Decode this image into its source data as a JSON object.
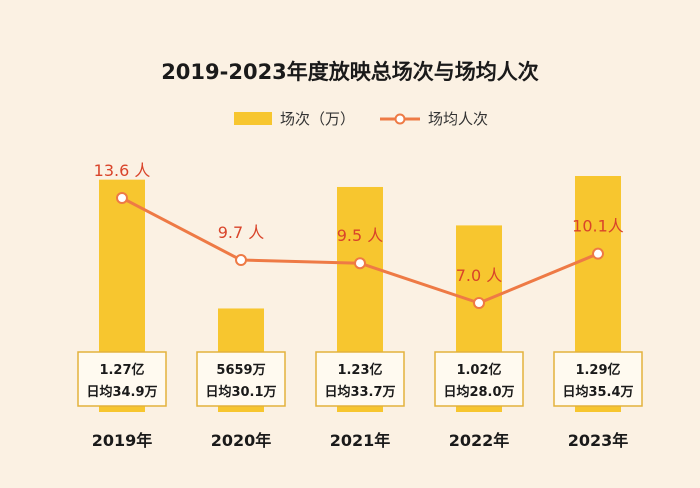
{
  "colors": {
    "bar": "#f7c62f",
    "line": "#ee7a45",
    "line_label": "#d9442a",
    "box_border": "#e3b23c",
    "box_fill": "#fffaf0",
    "background": "#fbf1e3"
  },
  "chart_data": {
    "type": "bar",
    "title": "2019-2023年度放映总场次与场均人次",
    "categories": [
      "2019年",
      "2020年",
      "2021年",
      "2022年",
      "2023年"
    ],
    "legend_position": "top",
    "grid": false,
    "series": [
      {
        "name": "场次（万）",
        "type": "bar",
        "values": [
          12700,
          5659,
          12300,
          10200,
          12900
        ],
        "labels": [
          "1.27亿",
          "5659万",
          "1.23亿",
          "1.02亿",
          "1.29亿"
        ],
        "daily_labels": [
          "日均34.9万",
          "日均30.1万",
          "日均33.7万",
          "日均28.0万",
          "日均35.4万"
        ]
      },
      {
        "name": "场均人次",
        "type": "line",
        "values": [
          13.6,
          9.7,
          9.5,
          7.0,
          10.1
        ],
        "labels": [
          "13.6 人",
          "9.7 人",
          "9.5 人",
          "7.0 人",
          "10.1人"
        ]
      }
    ]
  }
}
